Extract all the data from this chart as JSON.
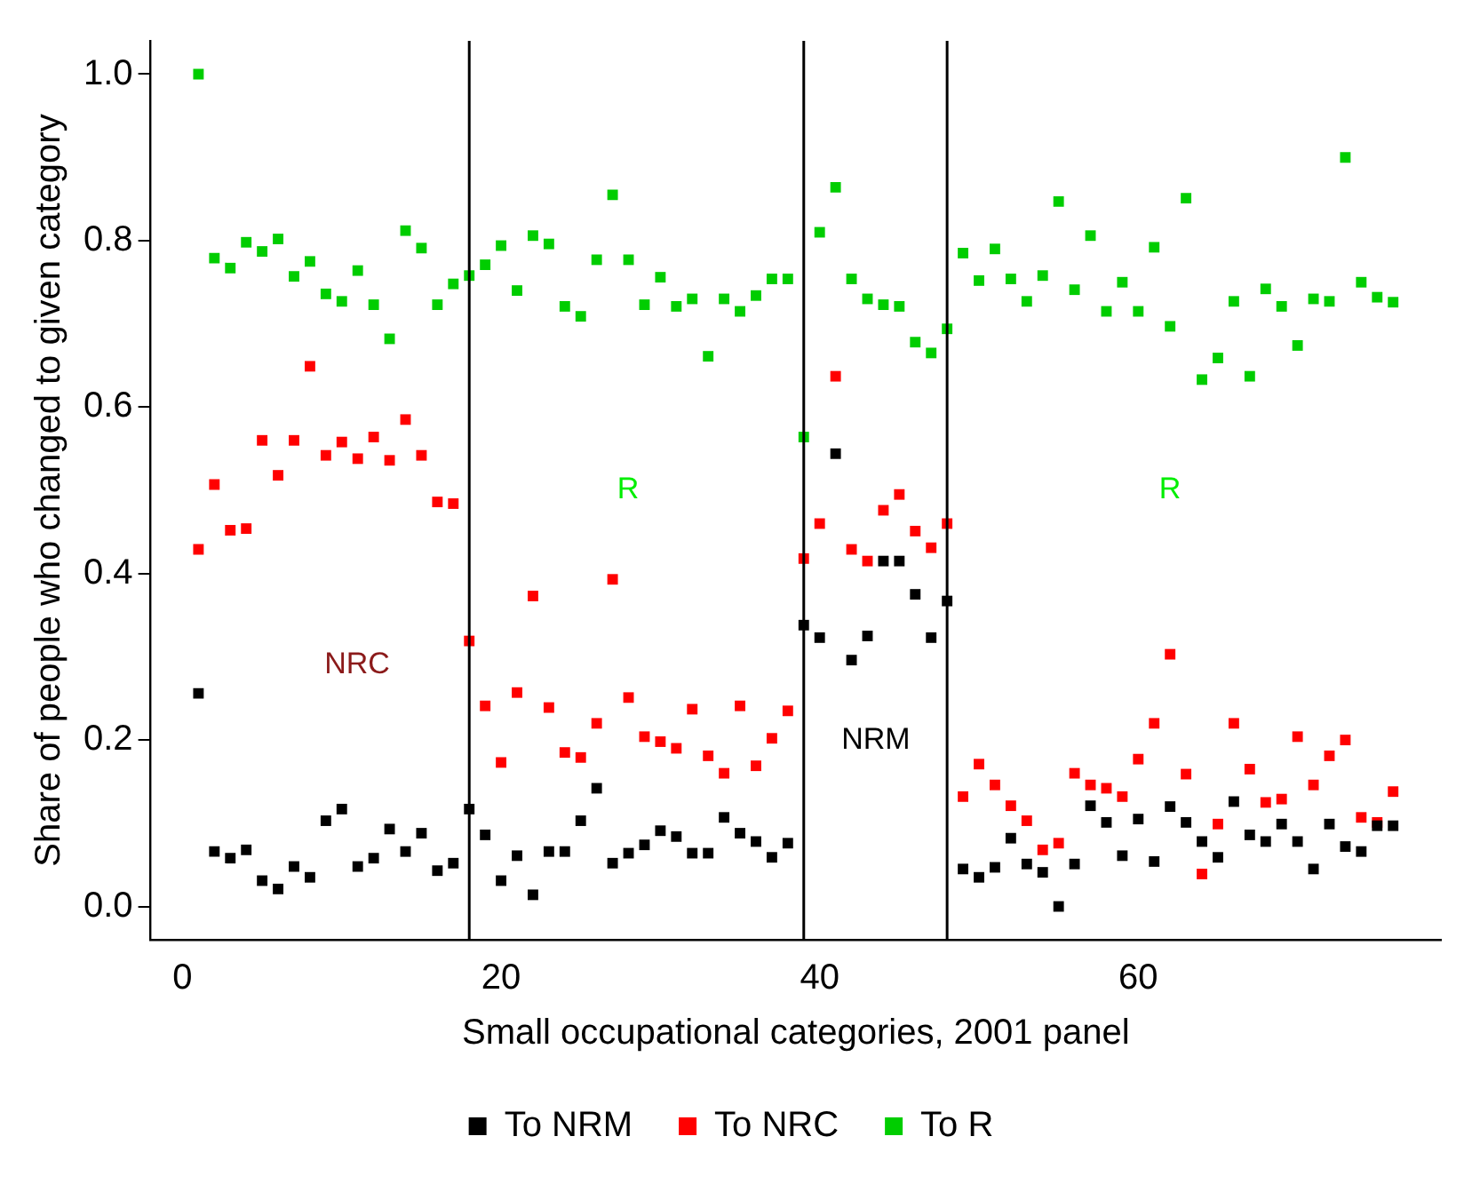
{
  "chart_data": {
    "type": "scatter",
    "xlabel": "Small occupational categories, 2001 panel",
    "ylabel": "Share of people who changed to given category",
    "x": [
      1,
      2,
      3,
      4,
      5,
      6,
      7,
      8,
      9,
      10,
      11,
      12,
      13,
      14,
      15,
      16,
      17,
      18,
      19,
      20,
      21,
      22,
      23,
      24,
      25,
      26,
      27,
      28,
      29,
      30,
      31,
      32,
      33,
      34,
      35,
      36,
      37,
      38,
      39,
      40,
      41,
      42,
      43,
      44,
      45,
      46,
      47,
      48,
      49,
      50,
      51,
      52,
      53,
      54,
      55,
      56,
      57,
      58,
      59,
      60,
      61,
      62,
      63,
      64,
      65,
      66,
      67,
      68,
      69,
      70,
      71,
      72,
      73,
      74,
      75,
      76
    ],
    "series": [
      {
        "name": "To NRM",
        "color": "#000000",
        "values": [
          0.256,
          0.066,
          0.058,
          0.068,
          0.031,
          0.021,
          0.048,
          0.035,
          0.103,
          0.117,
          0.048,
          0.058,
          0.093,
          0.066,
          0.088,
          0.043,
          0.052,
          0.117,
          0.086,
          0.031,
          0.061,
          0.014,
          0.066,
          0.066,
          0.103,
          0.142,
          0.052,
          0.064,
          0.074,
          0.091,
          0.084,
          0.064,
          0.064,
          0.107,
          0.088,
          0.078,
          0.059,
          0.076,
          0.338,
          0.323,
          0.544,
          0.296,
          0.325,
          0.415,
          0.415,
          0.375,
          0.323,
          0.367,
          0.045,
          0.035,
          0.047,
          0.082,
          0.051,
          0.041,
          0.0,
          0.051,
          0.121,
          0.101,
          0.061,
          0.105,
          0.054,
          0.12,
          0.101,
          0.078,
          0.059,
          0.126,
          0.086,
          0.078,
          0.099,
          0.078,
          0.045,
          0.099,
          0.072,
          0.066,
          0.097,
          0.097
        ]
      },
      {
        "name": "To NRC",
        "color": "#ff0000",
        "values": [
          0.429,
          0.507,
          0.452,
          0.454,
          0.56,
          0.518,
          0.56,
          0.649,
          0.542,
          0.558,
          0.538,
          0.564,
          0.536,
          0.585,
          0.542,
          0.486,
          0.484,
          0.319,
          0.241,
          0.173,
          0.257,
          0.373,
          0.239,
          0.185,
          0.179,
          0.22,
          0.393,
          0.251,
          0.204,
          0.198,
          0.19,
          0.237,
          0.181,
          0.16,
          0.241,
          0.169,
          0.202,
          0.235,
          0.418,
          0.46,
          0.637,
          0.429,
          0.415,
          0.476,
          0.495,
          0.451,
          0.431,
          0.46,
          0.132,
          0.171,
          0.146,
          0.121,
          0.103,
          0.068,
          0.076,
          0.16,
          0.146,
          0.142,
          0.132,
          0.177,
          0.22,
          0.303,
          0.159,
          0.039,
          0.099,
          0.22,
          0.165,
          0.125,
          0.129,
          0.204,
          0.146,
          0.181,
          0.2,
          0.107,
          0.101,
          0.138
        ]
      },
      {
        "name": "To R",
        "color": "#00cd00",
        "values": [
          1.0,
          0.779,
          0.767,
          0.798,
          0.787,
          0.802,
          0.757,
          0.775,
          0.736,
          0.727,
          0.764,
          0.723,
          0.682,
          0.812,
          0.791,
          0.723,
          0.748,
          0.758,
          0.771,
          0.794,
          0.74,
          0.806,
          0.796,
          0.721,
          0.709,
          0.777,
          0.855,
          0.777,
          0.723,
          0.756,
          0.721,
          0.73,
          0.661,
          0.73,
          0.715,
          0.734,
          0.754,
          0.754,
          0.564,
          0.81,
          0.864,
          0.754,
          0.73,
          0.723,
          0.721,
          0.678,
          0.665,
          0.694,
          0.785,
          0.752,
          0.79,
          0.754,
          0.727,
          0.758,
          0.847,
          0.741,
          0.806,
          0.715,
          0.75,
          0.715,
          0.792,
          0.697,
          0.851,
          0.633,
          0.659,
          0.727,
          0.637,
          0.742,
          0.721,
          0.674,
          0.73,
          0.727,
          0.9,
          0.75,
          0.732,
          0.726
        ]
      }
    ],
    "xlim": [
      -2,
      79
    ],
    "xticks": [
      0,
      20,
      40,
      60
    ],
    "ylim": [
      -0.04,
      1.04
    ],
    "yticks": [
      {
        "value": 0,
        "label": "0.0"
      },
      {
        "value": 0.2,
        "label": "0.2"
      },
      {
        "value": 0.4,
        "label": "0.4"
      },
      {
        "value": 0.6,
        "label": "0.6"
      },
      {
        "value": 0.8,
        "label": "0.8"
      },
      {
        "value": 1,
        "label": "1.0"
      }
    ],
    "ref_lines": [
      {
        "axis": "x",
        "value": 18,
        "color": "#000000"
      },
      {
        "axis": "x",
        "value": 39,
        "color": "#000000"
      },
      {
        "axis": "x",
        "value": 48,
        "color": "#000000"
      }
    ],
    "annotations": [
      "NRC",
      "R",
      "NRM",
      "R"
    ],
    "marker": "square",
    "grid": false,
    "legend": "bottom"
  }
}
